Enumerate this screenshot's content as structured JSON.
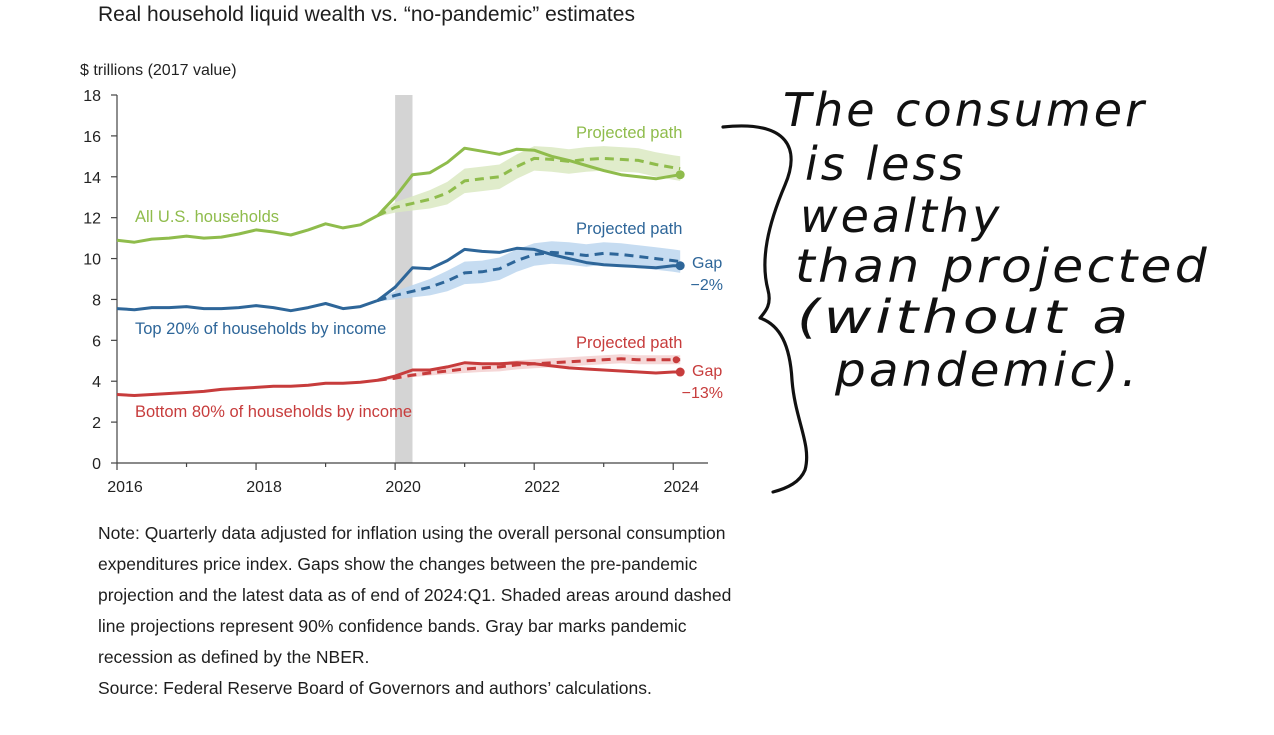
{
  "title": "Real household liquid wealth vs. “no-pandemic” estimates",
  "colors": {
    "green": "#8fbc4c",
    "green_band": "#dbe9c2",
    "blue": "#2e6699",
    "blue_band": "#bcd6ef",
    "red": "#c73c3c",
    "red_band": "#f3d0d0",
    "recession": "#d4d4d4",
    "axis": "#444444",
    "ink": "#111111"
  },
  "chart_data": {
    "type": "line",
    "title": "Real household liquid wealth vs. “no-pandemic” estimates",
    "ylabel": "$ trillions (2017 value)",
    "xlabel": "",
    "xlim": [
      2016,
      2024.5
    ],
    "ylim": [
      0,
      18
    ],
    "x_ticks": [
      "2016",
      "2018",
      "2020",
      "2022",
      "2024"
    ],
    "y_ticks": [
      "0",
      "2",
      "4",
      "6",
      "8",
      "10",
      "12",
      "14",
      "16",
      "18"
    ],
    "recession": [
      2020.0,
      2020.25
    ],
    "series": [
      {
        "name": "All U.S. households",
        "color_key": "green",
        "actual": {
          "x": [
            2016.0,
            2016.25,
            2016.5,
            2016.75,
            2017.0,
            2017.25,
            2017.5,
            2017.75,
            2018.0,
            2018.25,
            2018.5,
            2018.75,
            2019.0,
            2019.25,
            2019.5,
            2019.75,
            2020.0,
            2020.25,
            2020.5,
            2020.75,
            2021.0,
            2021.25,
            2021.5,
            2021.75,
            2022.0,
            2022.25,
            2022.5,
            2022.75,
            2023.0,
            2023.25,
            2023.5,
            2023.75,
            2024.0,
            2024.1
          ],
          "y": [
            10.9,
            10.8,
            10.95,
            11.0,
            11.1,
            11.0,
            11.05,
            11.2,
            11.4,
            11.3,
            11.15,
            11.4,
            11.7,
            11.5,
            11.65,
            12.1,
            13.0,
            14.1,
            14.2,
            14.7,
            15.4,
            15.25,
            15.1,
            15.35,
            15.3,
            15.0,
            14.8,
            14.55,
            14.3,
            14.1,
            14.0,
            13.9,
            14.05,
            14.1
          ]
        },
        "projection": {
          "x": [
            2019.75,
            2020.0,
            2020.25,
            2020.5,
            2020.75,
            2021.0,
            2021.25,
            2021.5,
            2021.75,
            2022.0,
            2022.25,
            2022.5,
            2022.75,
            2023.0,
            2023.25,
            2023.5,
            2023.75,
            2024.0,
            2024.1
          ],
          "y": [
            12.1,
            12.5,
            12.7,
            12.9,
            13.2,
            13.8,
            13.9,
            14.0,
            14.5,
            14.9,
            14.85,
            14.75,
            14.85,
            14.9,
            14.85,
            14.8,
            14.6,
            14.45,
            14.4
          ],
          "band": [
            0.05,
            0.25,
            0.35,
            0.45,
            0.55,
            0.6,
            0.6,
            0.6,
            0.6,
            0.6,
            0.6,
            0.6,
            0.6,
            0.6,
            0.6,
            0.6,
            0.6,
            0.6,
            0.6
          ]
        },
        "label": "All U.S. households",
        "proj_label": "Projected path"
      },
      {
        "name": "Top 20% of households by income",
        "color_key": "blue",
        "actual": {
          "x": [
            2016.0,
            2016.25,
            2016.5,
            2016.75,
            2017.0,
            2017.25,
            2017.5,
            2017.75,
            2018.0,
            2018.25,
            2018.5,
            2018.75,
            2019.0,
            2019.25,
            2019.5,
            2019.75,
            2020.0,
            2020.25,
            2020.5,
            2020.75,
            2021.0,
            2021.25,
            2021.5,
            2021.75,
            2022.0,
            2022.25,
            2022.5,
            2022.75,
            2023.0,
            2023.25,
            2023.5,
            2023.75,
            2024.0,
            2024.1
          ],
          "y": [
            7.55,
            7.5,
            7.6,
            7.6,
            7.65,
            7.55,
            7.55,
            7.6,
            7.7,
            7.6,
            7.45,
            7.6,
            7.8,
            7.55,
            7.65,
            7.95,
            8.6,
            9.55,
            9.5,
            9.9,
            10.45,
            10.35,
            10.3,
            10.5,
            10.45,
            10.2,
            10.0,
            9.8,
            9.7,
            9.65,
            9.6,
            9.55,
            9.65,
            9.65
          ]
        },
        "projection": {
          "x": [
            2019.75,
            2020.0,
            2020.25,
            2020.5,
            2020.75,
            2021.0,
            2021.25,
            2021.5,
            2021.75,
            2022.0,
            2022.25,
            2022.5,
            2022.75,
            2023.0,
            2023.25,
            2023.5,
            2023.75,
            2024.0,
            2024.1
          ],
          "y": [
            7.95,
            8.2,
            8.4,
            8.6,
            8.9,
            9.3,
            9.35,
            9.5,
            9.9,
            10.2,
            10.3,
            10.25,
            10.15,
            10.25,
            10.2,
            10.1,
            10.0,
            9.9,
            9.85
          ],
          "band": [
            0.05,
            0.2,
            0.3,
            0.4,
            0.5,
            0.55,
            0.55,
            0.55,
            0.55,
            0.55,
            0.55,
            0.55,
            0.55,
            0.55,
            0.55,
            0.55,
            0.55,
            0.55,
            0.55
          ]
        },
        "label": "Top 20% of households by income",
        "proj_label": "Projected path",
        "gap_label": "Gap",
        "gap_value": "−2%"
      },
      {
        "name": "Bottom 80% of households by income",
        "color_key": "red",
        "actual": {
          "x": [
            2016.0,
            2016.25,
            2016.5,
            2016.75,
            2017.0,
            2017.25,
            2017.5,
            2017.75,
            2018.0,
            2018.25,
            2018.5,
            2018.75,
            2019.0,
            2019.25,
            2019.5,
            2019.75,
            2020.0,
            2020.25,
            2020.5,
            2020.75,
            2021.0,
            2021.25,
            2021.5,
            2021.75,
            2022.0,
            2022.25,
            2022.5,
            2022.75,
            2023.0,
            2023.25,
            2023.5,
            2023.75,
            2024.0,
            2024.1
          ],
          "y": [
            3.35,
            3.3,
            3.35,
            3.4,
            3.45,
            3.5,
            3.6,
            3.65,
            3.7,
            3.75,
            3.75,
            3.8,
            3.9,
            3.9,
            3.95,
            4.05,
            4.25,
            4.55,
            4.55,
            4.7,
            4.9,
            4.85,
            4.85,
            4.9,
            4.85,
            4.75,
            4.65,
            4.6,
            4.55,
            4.5,
            4.45,
            4.4,
            4.45,
            4.45
          ]
        },
        "projection": {
          "x": [
            2019.75,
            2020.0,
            2020.25,
            2020.5,
            2020.75,
            2021.0,
            2021.25,
            2021.5,
            2021.75,
            2022.0,
            2022.25,
            2022.5,
            2022.75,
            2023.0,
            2023.25,
            2023.5,
            2023.75,
            2024.0,
            2024.1
          ],
          "y": [
            4.05,
            4.15,
            4.3,
            4.4,
            4.5,
            4.6,
            4.65,
            4.7,
            4.8,
            4.85,
            4.9,
            4.95,
            5.0,
            5.05,
            5.1,
            5.05,
            5.05,
            5.05,
            5.05
          ],
          "band": [
            0.02,
            0.08,
            0.1,
            0.12,
            0.15,
            0.2,
            0.2,
            0.22,
            0.22,
            0.22,
            0.22,
            0.22,
            0.22,
            0.22,
            0.22,
            0.22,
            0.22,
            0.22,
            0.22
          ]
        },
        "label": "Bottom 80% of households by income",
        "proj_label": "Projected path",
        "gap_label": "Gap",
        "gap_value": "−13%"
      }
    ]
  },
  "note": {
    "text": "Note: Quarterly data adjusted for inflation using the overall personal consumption expenditures price index. Gaps show the changes between the pre-pandemic projection and the latest data as of end of 2024:Q1. Shaded areas around dashed line projections represent 90% confidence bands. Gray bar marks pandemic recession as defined by the NBER.",
    "source": "Source: Federal Reserve Board of Governors and authors’ calculations."
  },
  "annotation": {
    "lines": [
      "The consumer",
      "is less",
      "wealthy",
      "than projected",
      "(without a",
      "pandemic)."
    ]
  }
}
